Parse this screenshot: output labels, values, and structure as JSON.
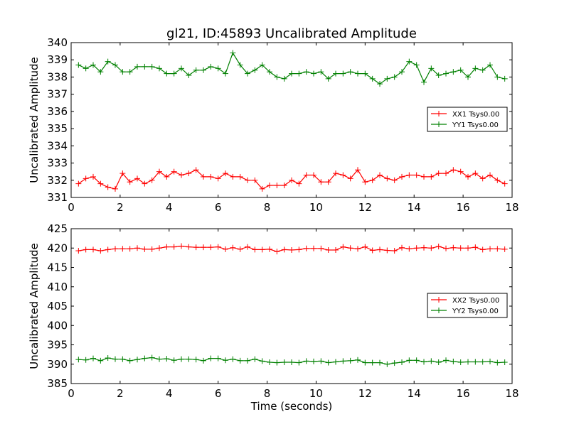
{
  "chart_data": [
    {
      "type": "line",
      "title": "gl21, ID:45893 Uncalibrated Amplitude",
      "xlabel": "",
      "ylabel": "Uncalibrated Amplitude",
      "xlim": [
        0,
        18
      ],
      "ylim": [
        331,
        340
      ],
      "xticks": [
        0,
        2,
        4,
        6,
        8,
        10,
        12,
        14,
        16,
        18
      ],
      "yticks": [
        331,
        332,
        333,
        334,
        335,
        336,
        337,
        338,
        339,
        340
      ],
      "grid": false,
      "legend_position": "right",
      "x": [
        0.3,
        0.6,
        0.9,
        1.2,
        1.5,
        1.8,
        2.1,
        2.4,
        2.7,
        3.0,
        3.3,
        3.6,
        3.9,
        4.2,
        4.5,
        4.8,
        5.1,
        5.4,
        5.7,
        6.0,
        6.3,
        6.6,
        6.9,
        7.2,
        7.5,
        7.8,
        8.1,
        8.4,
        8.7,
        9.0,
        9.3,
        9.6,
        9.9,
        10.2,
        10.5,
        10.8,
        11.1,
        11.4,
        11.7,
        12.0,
        12.3,
        12.6,
        12.9,
        13.2,
        13.5,
        13.8,
        14.1,
        14.4,
        14.7,
        15.0,
        15.3,
        15.6,
        15.9,
        16.2,
        16.5,
        16.8,
        17.1,
        17.4,
        17.7
      ],
      "series": [
        {
          "name": "XX1 Tsys0.00",
          "color": "#ff0000",
          "values": [
            331.8,
            332.1,
            332.2,
            331.8,
            331.6,
            331.5,
            332.4,
            331.9,
            332.1,
            331.8,
            332.0,
            332.5,
            332.2,
            332.5,
            332.3,
            332.4,
            332.6,
            332.2,
            332.2,
            332.1,
            332.4,
            332.2,
            332.2,
            332.0,
            332.0,
            331.5,
            331.7,
            331.7,
            331.7,
            332.0,
            331.8,
            332.3,
            332.3,
            331.9,
            331.9,
            332.4,
            332.3,
            332.1,
            332.6,
            331.9,
            332.0,
            332.3,
            332.1,
            332.0,
            332.2,
            332.3,
            332.3,
            332.2,
            332.2,
            332.4,
            332.4,
            332.6,
            332.5,
            332.2,
            332.4,
            332.1,
            332.3,
            332.0,
            331.8
          ]
        },
        {
          "name": "YY1 Tsys0.00",
          "color": "#008000",
          "values": [
            338.7,
            338.5,
            338.7,
            338.3,
            338.9,
            338.7,
            338.3,
            338.3,
            338.6,
            338.6,
            338.6,
            338.5,
            338.2,
            338.2,
            338.5,
            338.1,
            338.4,
            338.4,
            338.6,
            338.5,
            338.2,
            339.4,
            338.7,
            338.2,
            338.4,
            338.7,
            338.3,
            338.0,
            337.9,
            338.2,
            338.2,
            338.3,
            338.2,
            338.3,
            337.9,
            338.2,
            338.2,
            338.3,
            338.2,
            338.2,
            337.9,
            337.6,
            337.9,
            338.0,
            338.3,
            338.9,
            338.7,
            337.7,
            338.5,
            338.1,
            338.2,
            338.3,
            338.4,
            338.0,
            338.5,
            338.4,
            338.7,
            338.0,
            337.9
          ]
        }
      ]
    },
    {
      "type": "line",
      "title": "",
      "xlabel": "Time (seconds)",
      "ylabel": "Uncalibrated Amplitude",
      "xlim": [
        0,
        18
      ],
      "ylim": [
        385,
        425
      ],
      "xticks": [
        0,
        2,
        4,
        6,
        8,
        10,
        12,
        14,
        16,
        18
      ],
      "yticks": [
        385,
        390,
        395,
        400,
        405,
        410,
        415,
        420,
        425
      ],
      "grid": false,
      "legend_position": "right",
      "x": [
        0.3,
        0.6,
        0.9,
        1.2,
        1.5,
        1.8,
        2.1,
        2.4,
        2.7,
        3.0,
        3.3,
        3.6,
        3.9,
        4.2,
        4.5,
        4.8,
        5.1,
        5.4,
        5.7,
        6.0,
        6.3,
        6.6,
        6.9,
        7.2,
        7.5,
        7.8,
        8.1,
        8.4,
        8.7,
        9.0,
        9.3,
        9.6,
        9.9,
        10.2,
        10.5,
        10.8,
        11.1,
        11.4,
        11.7,
        12.0,
        12.3,
        12.6,
        12.9,
        13.2,
        13.5,
        13.8,
        14.1,
        14.4,
        14.7,
        15.0,
        15.3,
        15.6,
        15.9,
        16.2,
        16.5,
        16.8,
        17.1,
        17.4,
        17.7
      ],
      "series": [
        {
          "name": "XX2 Tsys0.00",
          "color": "#ff0000",
          "values": [
            419.3,
            419.6,
            419.6,
            419.3,
            419.6,
            419.8,
            419.8,
            419.8,
            420.0,
            419.7,
            419.7,
            420.0,
            420.3,
            420.3,
            420.5,
            420.3,
            420.2,
            420.2,
            420.2,
            420.3,
            419.7,
            420.1,
            419.7,
            420.3,
            419.6,
            419.6,
            419.7,
            419.1,
            419.6,
            419.5,
            419.6,
            419.9,
            419.9,
            419.9,
            419.5,
            419.5,
            420.3,
            420.0,
            419.8,
            420.3,
            419.4,
            419.6,
            419.4,
            419.3,
            420.1,
            419.8,
            420.0,
            420.1,
            420.0,
            420.4,
            419.9,
            420.1,
            420.0,
            420.0,
            420.2,
            419.6,
            419.8,
            419.8,
            419.7
          ]
        },
        {
          "name": "YY2 Tsys0.00",
          "color": "#008000",
          "values": [
            391.2,
            391.1,
            391.5,
            390.9,
            391.6,
            391.3,
            391.3,
            390.9,
            391.2,
            391.5,
            391.7,
            391.3,
            391.4,
            391.0,
            391.3,
            391.3,
            391.2,
            390.9,
            391.5,
            391.5,
            391.0,
            391.3,
            390.9,
            390.9,
            391.3,
            390.8,
            390.5,
            390.4,
            390.5,
            390.5,
            390.4,
            390.8,
            390.7,
            390.8,
            390.4,
            390.6,
            390.8,
            390.9,
            391.1,
            390.4,
            390.4,
            390.4,
            390.0,
            390.3,
            390.5,
            391.0,
            391.0,
            390.6,
            390.8,
            390.5,
            391.0,
            390.7,
            390.5,
            390.6,
            390.6,
            390.6,
            390.7,
            390.4,
            390.5
          ]
        }
      ]
    }
  ]
}
